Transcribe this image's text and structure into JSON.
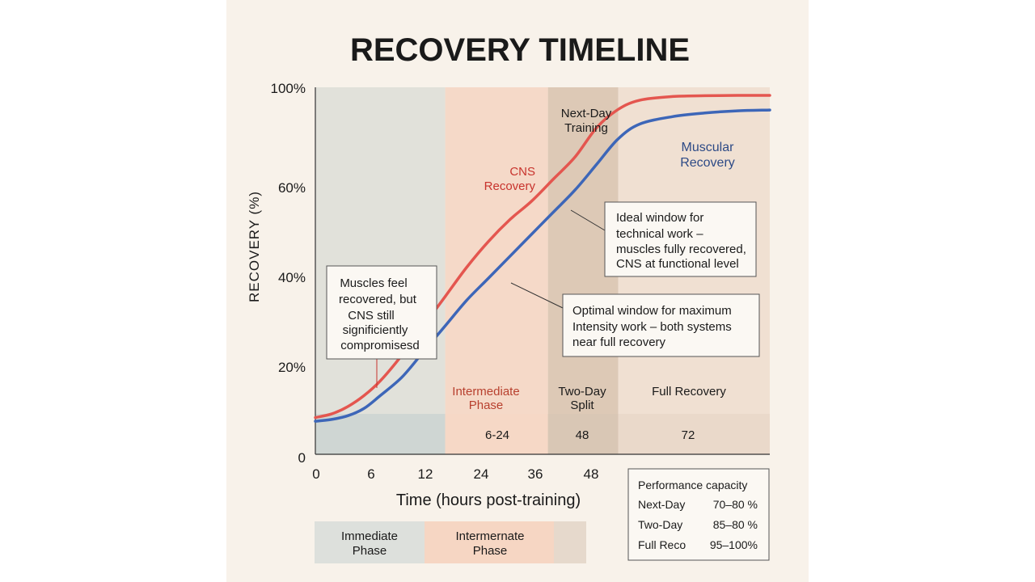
{
  "chart_data": {
    "type": "line",
    "title": "RECOVERY TIMELINE",
    "xlabel": "Time (hours post-training)",
    "ylabel": "RECOVERY (%)",
    "xlim": [
      0,
      84
    ],
    "ylim": [
      0,
      100
    ],
    "x_ticks": [
      "0",
      "6",
      "12",
      "24",
      "36",
      "48"
    ],
    "y_ticks": [
      "100%",
      "60%",
      "40%",
      "20%",
      "0"
    ],
    "series": [
      {
        "name": "CNS Recovery",
        "label_lines": [
          "CNS",
          "Recovery"
        ],
        "color": "#e4564f",
        "x": [
          0,
          3,
          6,
          9,
          12,
          16,
          20,
          24,
          28,
          32,
          36,
          40,
          44,
          48,
          52,
          56,
          60,
          66,
          72,
          78,
          84
        ],
        "y": [
          10,
          11,
          13,
          16,
          20,
          27,
          35,
          43,
          51,
          58,
          64,
          69,
          75,
          81,
          89,
          94,
          96.5,
          97.5,
          97.7,
          97.8,
          97.8
        ]
      },
      {
        "name": "Muscular Recovery",
        "label_lines": [
          "Muscular",
          "Recovery"
        ],
        "color": "#3d66b8",
        "x": [
          0,
          3,
          6,
          9,
          12,
          16,
          20,
          24,
          28,
          32,
          36,
          40,
          44,
          48,
          52,
          56,
          60,
          66,
          72,
          78,
          84
        ],
        "y": [
          9,
          9.5,
          10.5,
          12.5,
          16,
          21,
          28,
          35,
          42,
          48,
          54,
          60,
          66,
          72,
          79,
          86,
          90,
          92,
          93,
          93.6,
          93.8
        ]
      }
    ],
    "phases": [
      {
        "name": "Immediate",
        "x0": 0,
        "x1": 24,
        "color": "#e1e1da",
        "band_label_lines": [],
        "band_value": ""
      },
      {
        "name": "Intermediate",
        "x0": 24,
        "x1": 43,
        "color": "#f5d9c8",
        "band_label_lines": [
          "Intermediate",
          "Phase"
        ],
        "band_value": "6-24",
        "label_color": "red"
      },
      {
        "name": "Two-Day",
        "x0": 43,
        "x1": 56,
        "color": "#ddc9b6",
        "band_label_lines": [
          "Two-Day",
          "Split"
        ],
        "band_value": "48",
        "label_color": "dark"
      },
      {
        "name": "Full",
        "x0": 56,
        "x1": 84,
        "color": "#f0e0d2",
        "band_label_lines": [
          "Full Recovery"
        ],
        "band_value": "72",
        "label_color": "dark"
      }
    ],
    "next_day_label": [
      "Next-Day",
      "Training"
    ],
    "annotations": [
      {
        "lines": [
          "Muscles feel",
          "recovered, but",
          "CNS still",
          "significiently",
          "compromisesd"
        ]
      },
      {
        "lines": [
          "Ideal window for",
          "technical work –",
          "muscles fully recovered,",
          "CNS at functional level"
        ]
      },
      {
        "lines": [
          "Optimal window for maximum",
          "Intensity work – both systems",
          "near full recovery"
        ]
      }
    ],
    "grid": false,
    "legend": "none"
  },
  "bottom_legend": [
    {
      "lines": [
        "Immediate",
        "Phase"
      ],
      "color": "#dde0dc"
    },
    {
      "lines": [
        "Intermernate",
        "Phase"
      ],
      "color": "#f6d6c3"
    },
    {
      "lines": [],
      "color": "#e6d9cc"
    }
  ],
  "performance": {
    "title": "Performance capacity",
    "rows": [
      {
        "label": "Next-Day",
        "value": "70–80 %"
      },
      {
        "label": "Two-Day",
        "value": "85–80 %"
      },
      {
        "label": "Full Reco",
        "value": "95–100%"
      }
    ]
  }
}
